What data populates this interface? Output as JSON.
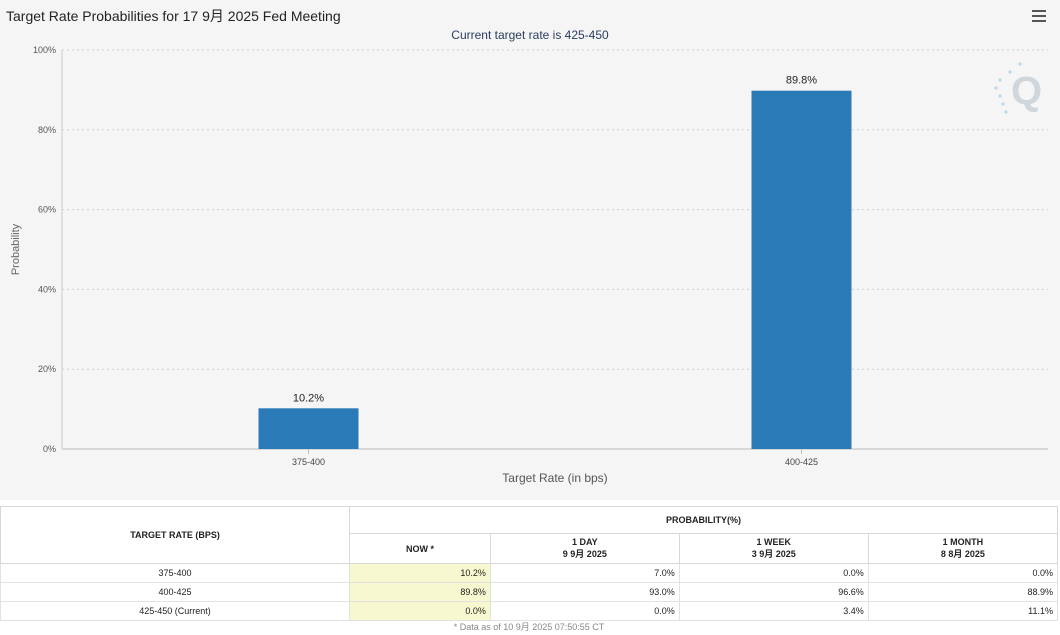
{
  "chart_data": {
    "type": "bar",
    "title": "Target Rate Probabilities for 17 9月 2025 Fed Meeting",
    "subtitle": "Current target rate is 425-450",
    "categories": [
      "375-400",
      "400-425"
    ],
    "values": [
      10.2,
      89.8
    ],
    "data_labels": [
      "10.2%",
      "89.8%"
    ],
    "xlabel": "Target Rate (in bps)",
    "ylabel": "Probability",
    "ylim": [
      0,
      100
    ],
    "yticks": [
      0,
      20,
      40,
      60,
      80,
      100
    ],
    "ytick_labels": [
      "0%",
      "20%",
      "40%",
      "60%",
      "80%",
      "100%"
    ],
    "grid": true,
    "bar_color": "#2a7ab8"
  },
  "watermark": "Q",
  "table": {
    "target_rate_header": "TARGET RATE (BPS)",
    "probability_header": "PROBABILITY(%)",
    "columns": [
      {
        "line1": "NOW *",
        "line2": ""
      },
      {
        "line1": "1 DAY",
        "line2": "9 9月 2025"
      },
      {
        "line1": "1 WEEK",
        "line2": "3 9月 2025"
      },
      {
        "line1": "1 MONTH",
        "line2": "8 8月 2025"
      }
    ],
    "rows": [
      {
        "rate": "375-400",
        "values": [
          "10.2%",
          "7.0%",
          "0.0%",
          "0.0%"
        ]
      },
      {
        "rate": "400-425",
        "values": [
          "89.8%",
          "93.0%",
          "96.6%",
          "88.9%"
        ]
      },
      {
        "rate": "425-450 (Current)",
        "values": [
          "0.0%",
          "0.0%",
          "3.4%",
          "11.1%"
        ]
      }
    ]
  },
  "footnote": "* Data as of 10 9月 2025 07:50:55 CT"
}
